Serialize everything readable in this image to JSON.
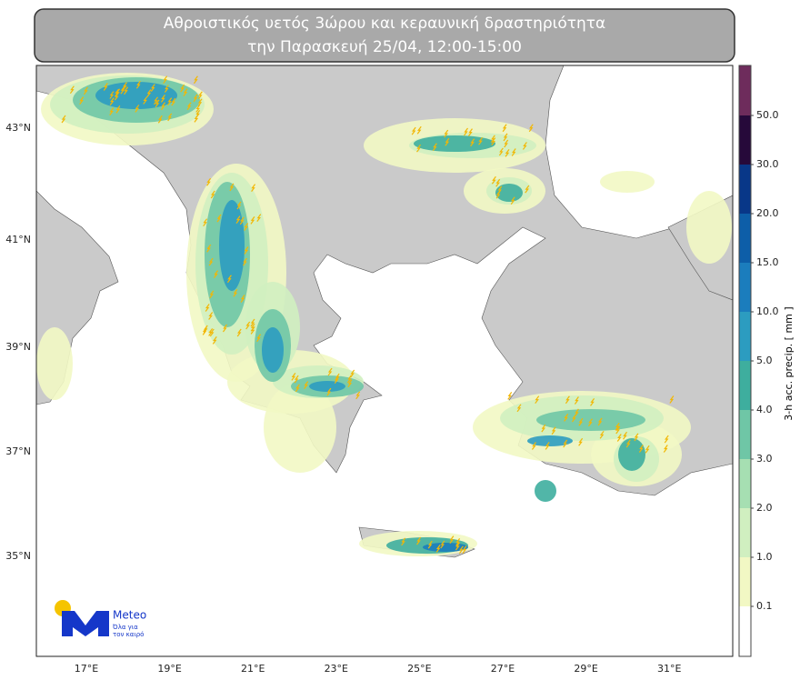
{
  "header": {
    "title_lines": [
      "Αθροιστικός υετός 3ώρου και κεραυνική δραστηριότητα",
      "την Παρασκευή 25/04, 12:00-15:00"
    ]
  },
  "map": {
    "lat_labels": [
      "43°N",
      "41°N",
      "39°N",
      "37°N",
      "35°N"
    ],
    "lon_labels": [
      "17°E",
      "19°E",
      "21°E",
      "23°E",
      "25°E",
      "27°E",
      "29°E",
      "31°E"
    ]
  },
  "colorbar": {
    "label": "3-h acc. precip. [ mm ]",
    "ticks": [
      0.1,
      {
        "value": 1,
        "label": "1.0"
      },
      {
        "value": 2,
        "label": "2.0"
      },
      {
        "value": 3,
        "label": "3.0"
      },
      {
        "value": 4,
        "label": "4.0"
      },
      {
        "value": 5,
        "label": "5.0"
      },
      {
        "value": 10,
        "label": "10.0"
      },
      {
        "value": 15,
        "label": "15.0"
      },
      {
        "value": 20,
        "label": "20.0"
      },
      {
        "value": 30,
        "label": "30.0"
      },
      {
        "value": 50,
        "label": "50.0"
      }
    ],
    "colors": [
      "#ffffff",
      "#f2f8c4",
      "#d0efc0",
      "#a6dfb2",
      "#6fc6a6",
      "#3eae9e",
      "#2c9cc0",
      "#1b7dbd",
      "#0d5ea8",
      "#083788",
      "#26093a",
      "#6e2c5c"
    ]
  },
  "logo": {
    "name": "Meteo",
    "tagline_lines": [
      "Όλα για",
      "τον καιρό"
    ]
  }
}
